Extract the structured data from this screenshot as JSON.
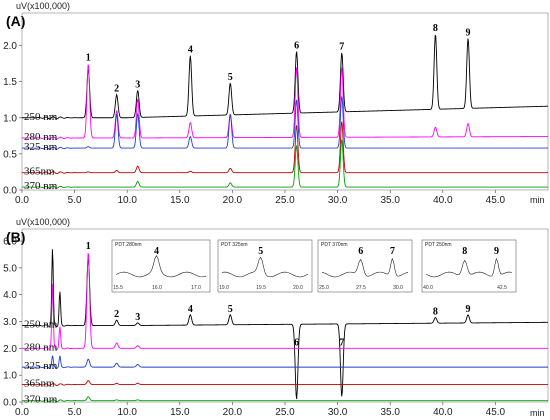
{
  "chart_data": [
    {
      "panel": "(A)",
      "type": "line",
      "ylabel": "uV(x100,000)",
      "xlabel": "min",
      "xlim": [
        0,
        50
      ],
      "ylim": [
        0,
        2.45
      ],
      "xticks": [
        "0.0",
        "5.0",
        "10.0",
        "15.0",
        "20.0",
        "25.0",
        "30.0",
        "35.0",
        "40.0",
        "45.0"
      ],
      "yticks": [
        "0.0",
        "0.5",
        "1.0",
        "1.5",
        "2.0"
      ],
      "peaks": [
        {
          "label": "1",
          "rt": 6.3
        },
        {
          "label": "2",
          "rt": 9.0
        },
        {
          "label": "3",
          "rt": 11.0
        },
        {
          "label": "4",
          "rt": 16.0
        },
        {
          "label": "5",
          "rt": 19.8
        },
        {
          "label": "6",
          "rt": 26.1
        },
        {
          "label": "7",
          "rt": 30.4
        },
        {
          "label": "8",
          "rt": 39.3
        },
        {
          "label": "9",
          "rt": 42.4
        }
      ],
      "series": [
        {
          "name": "250 nm",
          "color": "#000000",
          "baseline": 1.0,
          "drift": 0.16,
          "peaks": [
            1.68,
            1.32,
            1.38,
            1.86,
            1.48,
            1.92,
            1.9,
            2.16,
            2.1
          ]
        },
        {
          "name": "280 nm",
          "color": "#ff00ff",
          "baseline": 0.72,
          "drift": 0.02,
          "peaks": [
            1.75,
            1.1,
            1.26,
            0.93,
            1.05,
            1.7,
            1.7,
            0.87,
            0.92
          ]
        },
        {
          "name": "325 nm",
          "color": "#1f3fd0",
          "baseline": 0.58,
          "drift": 0.0,
          "peaks": [
            0.6,
            1.05,
            1.06,
            0.74,
            1.05,
            1.25,
            1.3,
            0.58,
            0.58
          ]
        },
        {
          "name": "365nm",
          "color": "#c00000",
          "baseline": 0.24,
          "drift": 0.0,
          "peaks": [
            0.25,
            0.27,
            0.33,
            0.26,
            0.3,
            0.9,
            0.95,
            0.24,
            0.24
          ]
        },
        {
          "name": "370 nm",
          "color": "#00a000",
          "baseline": 0.04,
          "drift": 0.0,
          "peaks": [
            0.04,
            0.04,
            0.12,
            0.04,
            0.1,
            0.62,
            0.7,
            0.04,
            0.04
          ]
        }
      ]
    },
    {
      "panel": "(B)",
      "type": "line",
      "ylabel": "uV(x100,000)",
      "xlabel": "min",
      "xlim": [
        0,
        50
      ],
      "ylim": [
        0,
        6.45
      ],
      "xticks": [
        "0.0",
        "5.0",
        "10.0",
        "15.0",
        "20.0",
        "25.0",
        "30.0",
        "35.0",
        "40.0",
        "45.0"
      ],
      "yticks": [
        "0.0",
        "1.0",
        "2.0",
        "3.0",
        "4.0",
        "5.0",
        "6.0"
      ],
      "peaks": [
        {
          "label": "1",
          "rt": 6.3
        },
        {
          "label": "2",
          "rt": 9.0
        },
        {
          "label": "3",
          "rt": 11.0
        },
        {
          "label": "4",
          "rt": 16.0
        },
        {
          "label": "5",
          "rt": 19.8
        },
        {
          "label": "6",
          "rt": 26.1
        },
        {
          "label": "7",
          "rt": 30.4
        },
        {
          "label": "8",
          "rt": 39.3
        },
        {
          "label": "9",
          "rt": 42.4
        }
      ],
      "series": [
        {
          "name": "250 nm",
          "color": "#000000",
          "baseline": 2.85,
          "drift": 0.12,
          "peaks": [
            5.4,
            3.05,
            2.95,
            3.25,
            3.25,
            0.1,
            0.2,
            3.15,
            3.25
          ]
        },
        {
          "name": "280 nm",
          "color": "#ff00ff",
          "baseline": 2.0,
          "drift": 0.0,
          "peaks": [
            5.6,
            2.2,
            2.1,
            2.0,
            2.0,
            2.0,
            2.0,
            2.0,
            2.0
          ]
        },
        {
          "name": "325 nm",
          "color": "#1f3fd0",
          "baseline": 1.3,
          "drift": 0.0,
          "peaks": [
            1.6,
            1.45,
            1.4,
            1.3,
            1.3,
            1.3,
            1.3,
            1.3,
            1.3
          ]
        },
        {
          "name": "365nm",
          "color": "#c00000",
          "baseline": 0.65,
          "drift": 0.0,
          "peaks": [
            0.8,
            0.7,
            0.7,
            0.65,
            0.65,
            0.65,
            0.65,
            0.65,
            0.65
          ]
        },
        {
          "name": "370 nm",
          "color": "#00a000",
          "baseline": 0.05,
          "drift": 0.0,
          "peaks": [
            0.2,
            0.08,
            0.08,
            0.05,
            0.05,
            0.05,
            0.05,
            0.05,
            0.05
          ]
        }
      ],
      "early_spikes": [
        {
          "rt": 2.9,
          "height": 5.7
        },
        {
          "rt": 3.6,
          "height": 4.1
        }
      ],
      "insets": [
        {
          "title": "PDT 280nm",
          "peak": "4",
          "ticks": [
            "15.5",
            "16.0",
            "17.0"
          ]
        },
        {
          "title": "PDT 325nm",
          "peak": "5",
          "ticks": [
            "19.0",
            "19.5",
            "20.0"
          ]
        },
        {
          "title": "PDT 370nm",
          "peak": "6",
          "peak2": "7",
          "ticks": [
            "25.0",
            "27.5",
            "30.0"
          ]
        },
        {
          "title": "PDT 250nm",
          "peak": "8",
          "peak2": "9",
          "ticks": [
            "40.0",
            "42.5"
          ]
        }
      ]
    }
  ]
}
